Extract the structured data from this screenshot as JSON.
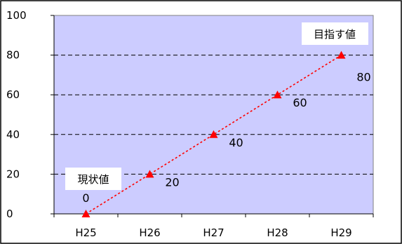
{
  "chart_data": {
    "type": "line",
    "categories": [
      "H25",
      "H26",
      "H27",
      "H28",
      "H29"
    ],
    "series": [
      {
        "values": [
          0,
          20,
          40,
          60,
          80
        ]
      }
    ],
    "data_labels": [
      "0",
      "20",
      "40",
      "60",
      "80"
    ],
    "y_ticks": [
      "0",
      "20",
      "40",
      "60",
      "80",
      "100"
    ],
    "ylim": [
      0,
      100
    ],
    "grid": "horizontal dashed",
    "line_style": "dotted",
    "marker": "triangle",
    "colors": {
      "plot_background": "#ccccff",
      "line": "#ff0000",
      "marker": "#ff0000",
      "grid": "#000000"
    },
    "annotations": {
      "current_value": "現状値",
      "target_value": "目指す値"
    }
  }
}
